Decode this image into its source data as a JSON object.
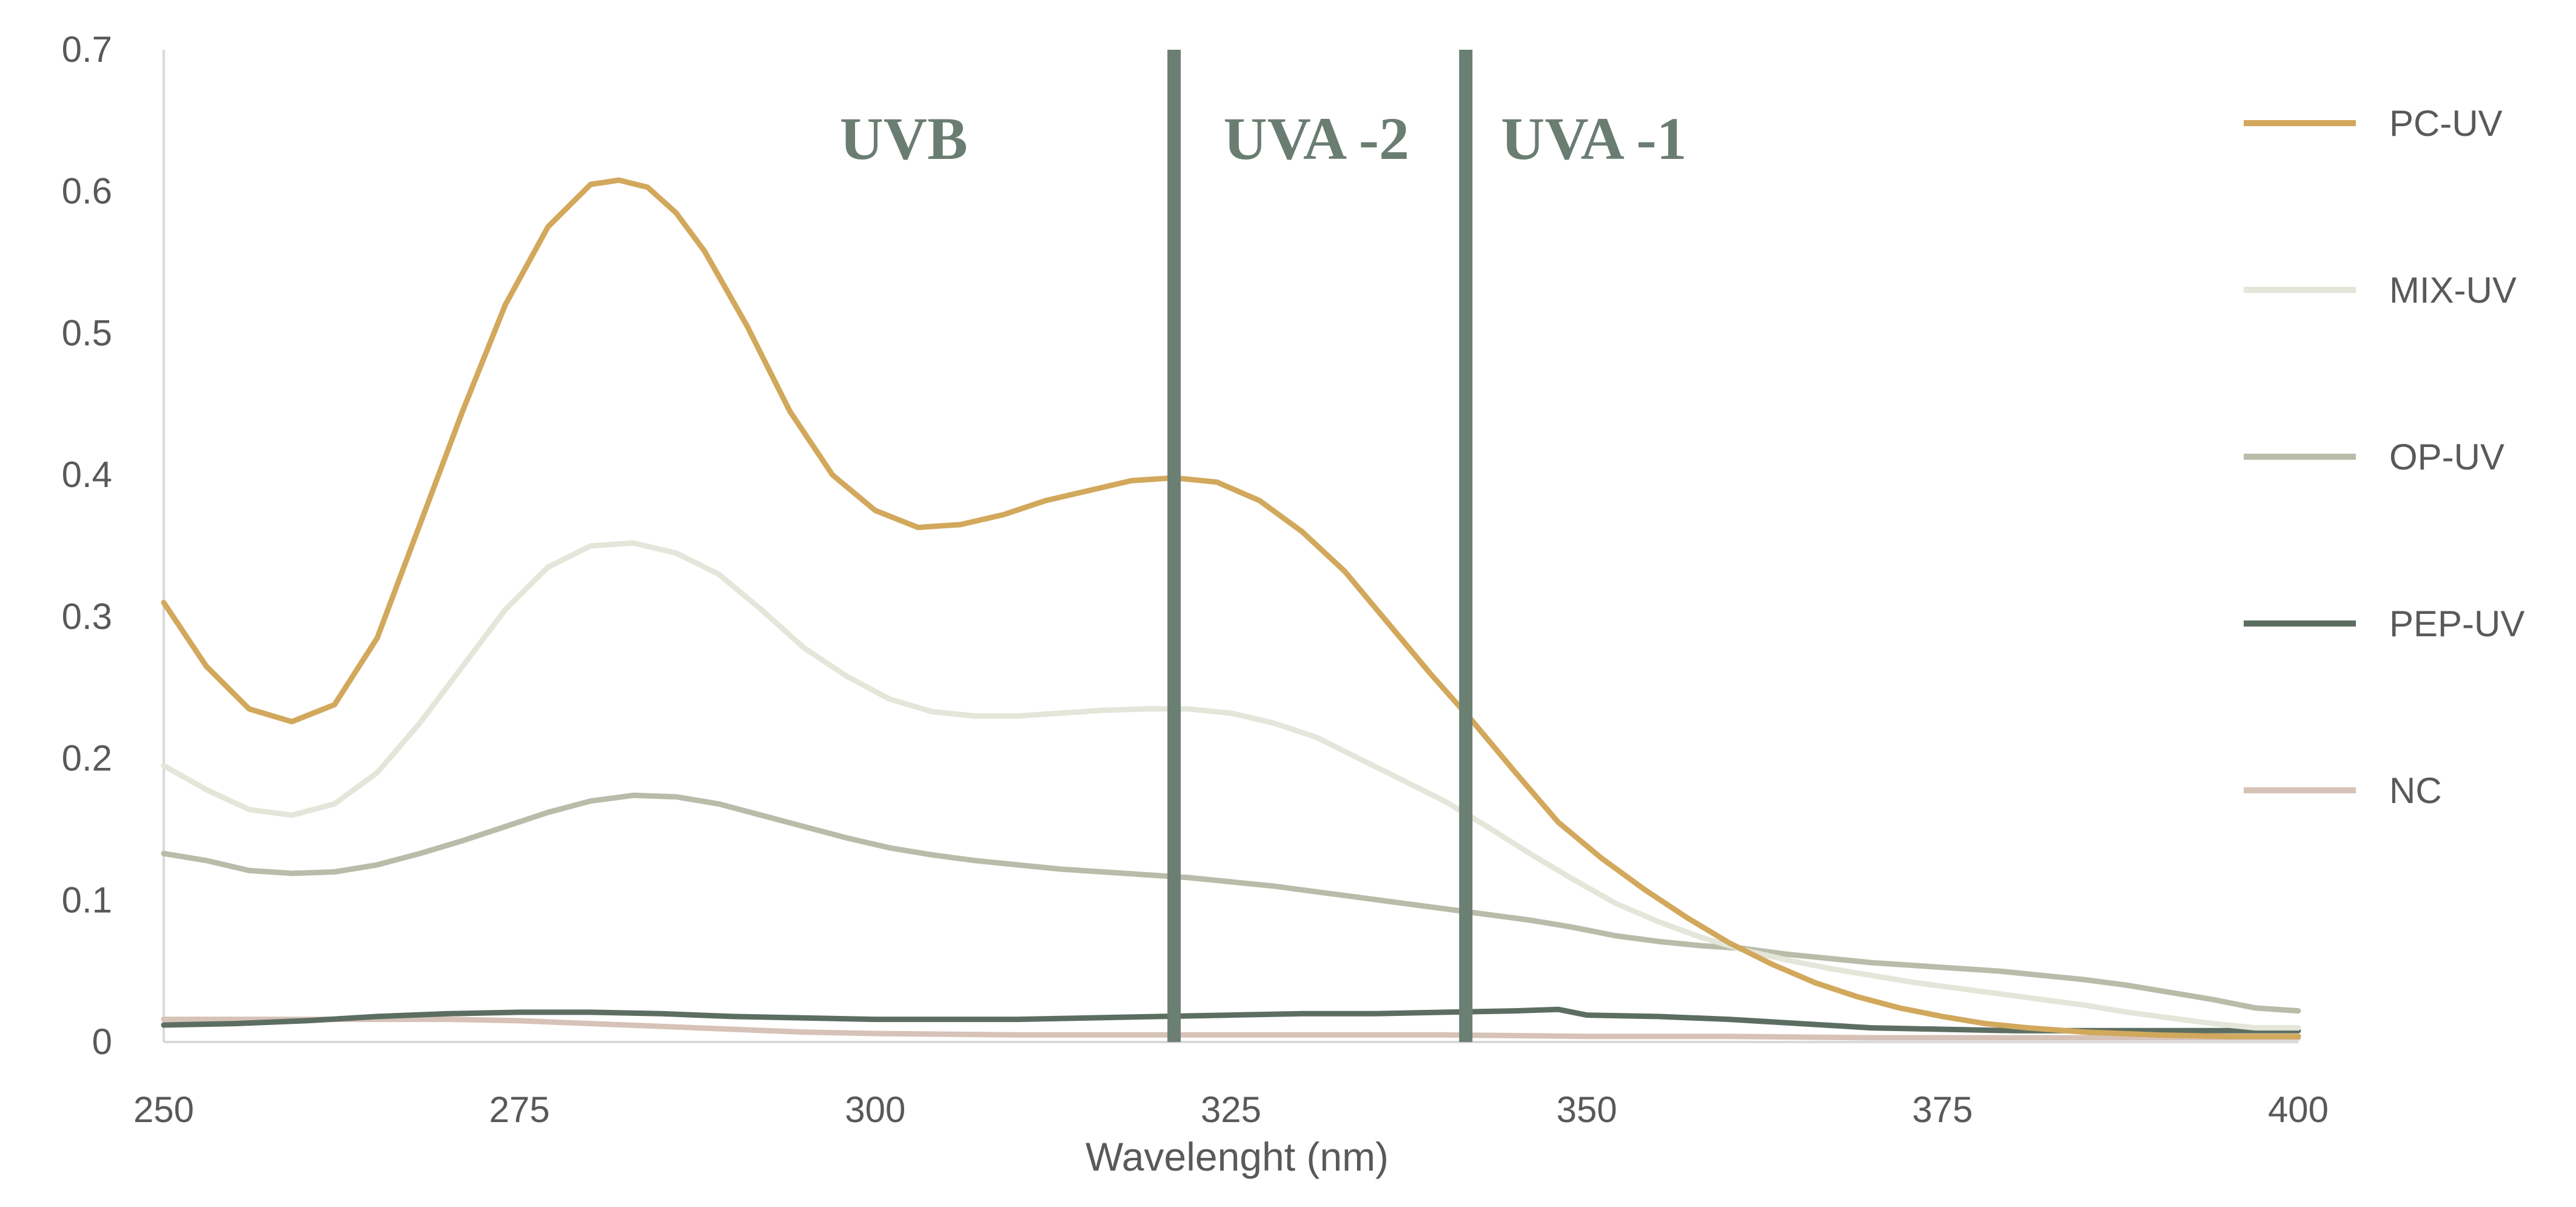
{
  "chart_data": {
    "type": "line",
    "title": "",
    "xlabel": "Wavelenght (nm)",
    "ylabel": "",
    "xlim": [
      250,
      400
    ],
    "ylim": [
      0,
      0.7
    ],
    "grid": false,
    "legend_position": "right",
    "x_ticks": [
      250,
      275,
      300,
      325,
      350,
      375,
      400
    ],
    "y_ticks": [
      "0",
      "0.1",
      "0.2",
      "0.3",
      "0.4",
      "0.5",
      "0.6",
      "0.7"
    ],
    "y_tick_values": [
      0,
      0.1,
      0.2,
      0.3,
      0.4,
      0.5,
      0.6,
      0.7
    ],
    "region_dividers": [
      321,
      341.5
    ],
    "region_labels": [
      {
        "text": "UVB",
        "x": 302
      },
      {
        "text": "UVA -2",
        "x": 331
      },
      {
        "text": "UVA -1",
        "x": 350.5
      }
    ],
    "divider_color": "#6b7f73",
    "series": [
      {
        "name": "PC-UV",
        "color": "#d2a85c",
        "x": [
          250,
          253,
          256,
          259,
          262,
          265,
          268,
          271,
          274,
          277,
          280,
          282,
          284,
          286,
          288,
          291,
          294,
          297,
          300,
          303,
          306,
          309,
          312,
          315,
          318,
          321,
          324,
          327,
          330,
          333,
          336,
          339,
          342,
          345,
          348,
          351,
          354,
          357,
          360,
          363,
          366,
          369,
          372,
          375,
          378,
          381,
          385,
          390,
          395,
          400
        ],
        "values": [
          0.31,
          0.265,
          0.235,
          0.226,
          0.238,
          0.285,
          0.365,
          0.445,
          0.52,
          0.575,
          0.605,
          0.608,
          0.603,
          0.585,
          0.558,
          0.505,
          0.445,
          0.4,
          0.375,
          0.363,
          0.365,
          0.372,
          0.382,
          0.389,
          0.396,
          0.398,
          0.395,
          0.382,
          0.36,
          0.332,
          0.296,
          0.26,
          0.226,
          0.19,
          0.155,
          0.13,
          0.108,
          0.088,
          0.07,
          0.055,
          0.042,
          0.032,
          0.024,
          0.018,
          0.013,
          0.01,
          0.007,
          0.005,
          0.004,
          0.004
        ]
      },
      {
        "name": "MIX-UV",
        "color": "#e3e6d9",
        "x": [
          250,
          253,
          256,
          259,
          262,
          265,
          268,
          271,
          274,
          277,
          280,
          283,
          286,
          289,
          292,
          295,
          298,
          301,
          304,
          307,
          310,
          313,
          316,
          319,
          322,
          325,
          328,
          331,
          334,
          337,
          340,
          343,
          346,
          349,
          352,
          355,
          358,
          361,
          364,
          367,
          370,
          373,
          376,
          379,
          382,
          385,
          388,
          391,
          394,
          397,
          400
        ],
        "values": [
          0.195,
          0.178,
          0.164,
          0.16,
          0.168,
          0.19,
          0.225,
          0.265,
          0.305,
          0.335,
          0.35,
          0.352,
          0.345,
          0.33,
          0.305,
          0.278,
          0.258,
          0.242,
          0.233,
          0.23,
          0.23,
          0.232,
          0.234,
          0.235,
          0.235,
          0.232,
          0.225,
          0.215,
          0.2,
          0.185,
          0.17,
          0.152,
          0.133,
          0.115,
          0.098,
          0.085,
          0.074,
          0.065,
          0.058,
          0.052,
          0.047,
          0.042,
          0.038,
          0.034,
          0.03,
          0.026,
          0.021,
          0.017,
          0.013,
          0.01,
          0.01
        ]
      },
      {
        "name": "OP-UV",
        "color": "#b8bca9",
        "x": [
          250,
          253,
          256,
          259,
          262,
          265,
          268,
          271,
          274,
          277,
          280,
          283,
          286,
          289,
          292,
          295,
          298,
          301,
          304,
          307,
          310,
          313,
          316,
          319,
          322,
          325,
          328,
          331,
          334,
          337,
          340,
          343,
          346,
          349,
          352,
          355,
          358,
          361,
          364,
          367,
          370,
          373,
          376,
          379,
          382,
          385,
          388,
          391,
          394,
          397,
          400
        ],
        "values": [
          0.133,
          0.128,
          0.121,
          0.119,
          0.12,
          0.125,
          0.133,
          0.142,
          0.152,
          0.162,
          0.17,
          0.174,
          0.173,
          0.168,
          0.16,
          0.152,
          0.144,
          0.137,
          0.132,
          0.128,
          0.125,
          0.122,
          0.12,
          0.118,
          0.116,
          0.113,
          0.11,
          0.106,
          0.102,
          0.098,
          0.094,
          0.09,
          0.086,
          0.081,
          0.075,
          0.071,
          0.068,
          0.066,
          0.062,
          0.059,
          0.056,
          0.054,
          0.052,
          0.05,
          0.047,
          0.044,
          0.04,
          0.035,
          0.03,
          0.024,
          0.022
        ]
      },
      {
        "name": "PEP-UV",
        "color": "#5c6e62",
        "x": [
          250,
          255,
          260,
          265,
          270,
          275,
          280,
          285,
          290,
          295,
          300,
          305,
          310,
          315,
          320,
          325,
          330,
          335,
          340,
          345,
          348,
          350,
          355,
          360,
          365,
          370,
          375,
          380,
          385,
          390,
          395,
          400
        ],
        "values": [
          0.012,
          0.013,
          0.015,
          0.018,
          0.02,
          0.021,
          0.021,
          0.02,
          0.018,
          0.017,
          0.016,
          0.016,
          0.016,
          0.017,
          0.018,
          0.019,
          0.02,
          0.02,
          0.021,
          0.022,
          0.023,
          0.019,
          0.018,
          0.016,
          0.013,
          0.01,
          0.009,
          0.008,
          0.008,
          0.008,
          0.008,
          0.008
        ]
      },
      {
        "name": "NC",
        "color": "#d7c2b8",
        "x": [
          250,
          255,
          260,
          265,
          270,
          275,
          280,
          285,
          290,
          295,
          300,
          310,
          320,
          330,
          340,
          350,
          360,
          370,
          380,
          390,
          400
        ],
        "values": [
          0.016,
          0.016,
          0.016,
          0.016,
          0.016,
          0.015,
          0.013,
          0.011,
          0.009,
          0.007,
          0.006,
          0.005,
          0.005,
          0.005,
          0.005,
          0.004,
          0.004,
          0.003,
          0.003,
          0.003,
          0.003
        ]
      }
    ]
  }
}
